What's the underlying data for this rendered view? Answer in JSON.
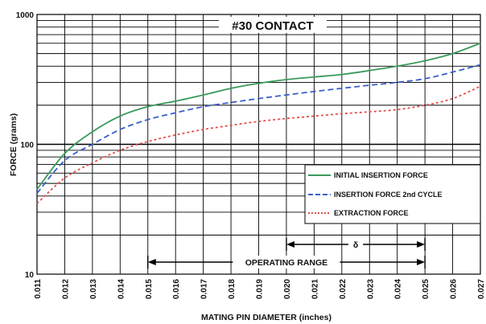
{
  "chart_data": {
    "type": "line",
    "title": "#30 CONTACT",
    "xlabel": "MATING PIN  DIAMETER (inches)",
    "ylabel": "FORCE (grams)",
    "x_scale": "linear",
    "y_scale": "log",
    "xlim": [
      0.011,
      0.027
    ],
    "ylim": [
      10,
      1000
    ],
    "x_ticks": [
      "0.011",
      "0.012",
      "0.013",
      "0.014",
      "0.015",
      "0.016",
      "0.017",
      "0.018",
      "0.019",
      "0.020",
      "0.021",
      "0.022",
      "0.023",
      "0.024",
      "0.025",
      "0.026",
      "0.027"
    ],
    "y_ticks": [
      "1000",
      "100",
      "10"
    ],
    "grid": true,
    "legend_position": "right",
    "series": [
      {
        "name": "INITIAL INSERTION FORCE",
        "color": "#3a9a5c",
        "style": "solid",
        "x": [
          0.011,
          0.012,
          0.013,
          0.014,
          0.015,
          0.016,
          0.017,
          0.018,
          0.019,
          0.02,
          0.021,
          0.022,
          0.023,
          0.024,
          0.025,
          0.026,
          0.027
        ],
        "y": [
          45,
          85,
          125,
          165,
          195,
          215,
          240,
          270,
          295,
          315,
          330,
          345,
          370,
          400,
          440,
          500,
          600
        ]
      },
      {
        "name": "INSERTION FORCE 2nd CYCLE",
        "color": "#3a5fc8",
        "style": "dashed",
        "x": [
          0.011,
          0.012,
          0.013,
          0.014,
          0.015,
          0.016,
          0.017,
          0.018,
          0.019,
          0.02,
          0.021,
          0.022,
          0.023,
          0.024,
          0.025,
          0.026,
          0.027
        ],
        "y": [
          42,
          75,
          100,
          130,
          155,
          175,
          195,
          210,
          225,
          240,
          255,
          270,
          285,
          300,
          320,
          360,
          410
        ]
      },
      {
        "name": "EXTRACTION FORCE",
        "color": "#e05050",
        "style": "dotted",
        "x": [
          0.011,
          0.012,
          0.013,
          0.014,
          0.015,
          0.016,
          0.017,
          0.018,
          0.019,
          0.02,
          0.021,
          0.022,
          0.023,
          0.024,
          0.025,
          0.026,
          0.027
        ],
        "y": [
          35,
          55,
          72,
          90,
          105,
          118,
          130,
          140,
          150,
          158,
          165,
          172,
          178,
          185,
          200,
          225,
          280
        ]
      }
    ],
    "annotations": [
      {
        "text": "OPERATING RANGE",
        "from": 0.015,
        "to": 0.025
      },
      {
        "text": "δ",
        "from": 0.02,
        "to": 0.025
      }
    ]
  }
}
